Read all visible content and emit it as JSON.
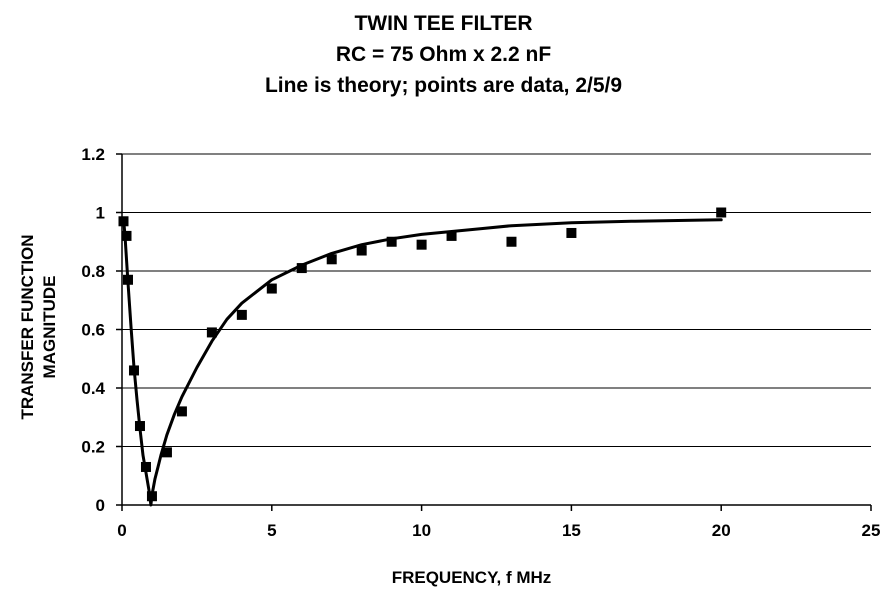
{
  "chart_data": {
    "type": "scatter",
    "title_lines": [
      "TWIN TEE FILTER",
      "RC = 75 Ohm x 2.2 nF",
      "Line is theory; points are data, 2/5/9"
    ],
    "xlabel": "FREQUENCY, f MHz",
    "ylabel_lines": [
      "TRANSFER FUNCTION",
      "MAGNITUDE"
    ],
    "xlim": [
      0,
      25
    ],
    "ylim": [
      0,
      1.2
    ],
    "x_ticks": [
      0,
      5,
      10,
      15,
      20,
      25
    ],
    "y_ticks": [
      0,
      0.2,
      0.4,
      0.6,
      0.8,
      1,
      1.2
    ],
    "grid": "horizontal",
    "series": [
      {
        "name": "theory",
        "kind": "line",
        "x": [
          0.05,
          0.1,
          0.2,
          0.3,
          0.4,
          0.5,
          0.6,
          0.7,
          0.8,
          0.9,
          0.965,
          1.0,
          1.1,
          1.2,
          1.3,
          1.5,
          1.75,
          2.0,
          2.5,
          3.0,
          3.5,
          4.0,
          5.0,
          6.0,
          7.0,
          8.0,
          9.0,
          10.0,
          12.0,
          13.0,
          15.0,
          17.0,
          20.0
        ],
        "y": [
          0.98,
          0.92,
          0.76,
          0.61,
          0.47,
          0.36,
          0.26,
          0.17,
          0.11,
          0.05,
          0.0,
          0.035,
          0.09,
          0.13,
          0.17,
          0.24,
          0.31,
          0.37,
          0.47,
          0.56,
          0.635,
          0.69,
          0.77,
          0.82,
          0.86,
          0.89,
          0.91,
          0.925,
          0.945,
          0.955,
          0.965,
          0.97,
          0.975
        ]
      },
      {
        "name": "data",
        "kind": "markers",
        "marker": "square",
        "x": [
          0.05,
          0.15,
          0.2,
          0.4,
          0.6,
          0.8,
          1.0,
          1.5,
          2.0,
          3.0,
          4.0,
          5.0,
          6.0,
          7.0,
          8.0,
          9.0,
          10.0,
          11.0,
          13.0,
          15.0,
          20.0
        ],
        "y": [
          0.97,
          0.92,
          0.77,
          0.46,
          0.27,
          0.13,
          0.03,
          0.18,
          0.32,
          0.59,
          0.65,
          0.74,
          0.81,
          0.84,
          0.87,
          0.9,
          0.89,
          0.92,
          0.9,
          0.93,
          1.0
        ]
      }
    ],
    "colors": {
      "line": "#000000",
      "marker": "#000000",
      "grid": "#000000",
      "background": "#ffffff"
    }
  }
}
